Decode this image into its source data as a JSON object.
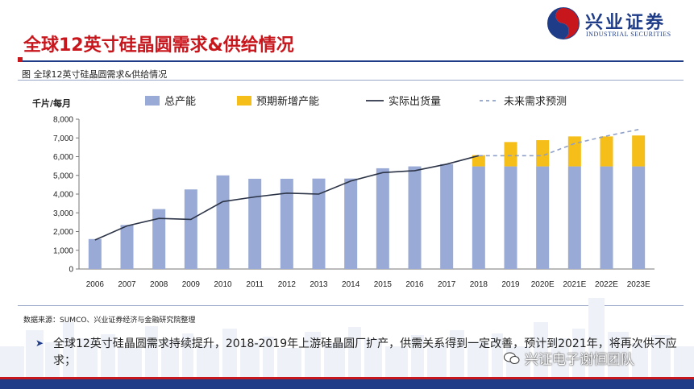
{
  "slide": {
    "title": "全球12英寸硅晶圆需求&供给情况",
    "figure_label": "图  全球12英寸硅晶圆需求&供给情况",
    "source": "数据来源：SUMCO、兴业证券经济与金融研究院整理",
    "bullet": "全球12英寸硅晶圆需求持续提升，2018-2019年上游硅晶圆厂扩产，供需关系得到一定改善，预计到2021年，将再次供不应求；",
    "watermark": "兴证电子谢恒团队"
  },
  "logo": {
    "cn": "兴业证券",
    "en": "INDUSTRIAL SECURITIES"
  },
  "colors": {
    "brand_red": "#c8161d",
    "brand_blue": "#1f3c88",
    "bar_total": "#9aaad6",
    "bar_new": "#f5be18",
    "line_actual": "#2b3346",
    "line_forecast": "#8fa0c8"
  },
  "chart_data": {
    "type": "bar",
    "unit": "千片/每月",
    "categories": [
      "2006",
      "2007",
      "2008",
      "2009",
      "2010",
      "2011",
      "2012",
      "2013",
      "2014",
      "2015",
      "2016",
      "2017",
      "2018",
      "2019",
      "2020E",
      "2021E",
      "2022E",
      "2023E"
    ],
    "ylim": [
      0,
      8000
    ],
    "yticks": [
      0,
      1000,
      2000,
      3000,
      4000,
      5000,
      6000,
      7000,
      8000
    ],
    "ytick_labels": [
      "0",
      "1,000",
      "2,000",
      "3,000",
      "4,000",
      "5,000",
      "6,000",
      "7,000",
      "8,000"
    ],
    "grid": false,
    "legend_position": "top",
    "series": [
      {
        "name": "总产能",
        "kind": "bar",
        "values": [
          1600,
          2350,
          3200,
          4250,
          5000,
          4820,
          4820,
          4830,
          4830,
          5380,
          5480,
          5600,
          5480,
          5480,
          5480,
          5480,
          5480,
          5480
        ]
      },
      {
        "name": "预期新增产能",
        "kind": "bar-stacked",
        "values": [
          0,
          0,
          0,
          0,
          0,
          0,
          0,
          0,
          0,
          0,
          0,
          0,
          600,
          1300,
          1400,
          1600,
          1600,
          1650
        ]
      },
      {
        "name": "实际出货量",
        "kind": "line",
        "values": [
          1550,
          2300,
          2700,
          2650,
          3600,
          3850,
          4050,
          4000,
          4700,
          5150,
          5250,
          5600,
          6050,
          null,
          null,
          null,
          null,
          null
        ]
      },
      {
        "name": "未来需求预测",
        "kind": "dashed-line",
        "values": [
          null,
          null,
          null,
          null,
          null,
          null,
          null,
          null,
          null,
          null,
          null,
          null,
          6050,
          6050,
          6050,
          6700,
          7100,
          7450
        ]
      }
    ]
  }
}
